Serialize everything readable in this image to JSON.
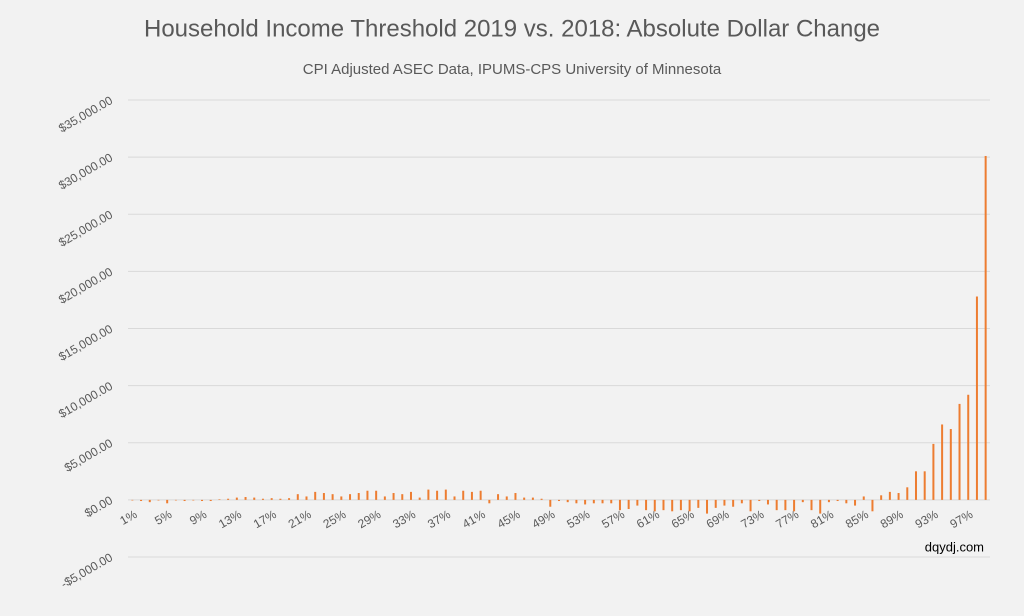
{
  "chart_data": {
    "type": "bar",
    "title": "Household Income Threshold 2019 vs. 2018: Absolute Dollar Change",
    "subtitle": "CPI Adjusted ASEC Data, IPUMS-CPS University of Minnesota",
    "annotation": "dqydj.com",
    "categories": [
      "1%",
      null,
      null,
      null,
      "5%",
      null,
      null,
      null,
      "9%",
      null,
      null,
      null,
      "13%",
      null,
      null,
      null,
      "17%",
      null,
      null,
      null,
      "21%",
      null,
      null,
      null,
      "25%",
      null,
      null,
      null,
      "29%",
      null,
      null,
      null,
      "33%",
      null,
      null,
      null,
      "37%",
      null,
      null,
      null,
      "41%",
      null,
      null,
      null,
      "45%",
      null,
      null,
      null,
      "49%",
      null,
      null,
      null,
      "53%",
      null,
      null,
      null,
      "57%",
      null,
      null,
      null,
      "61%",
      null,
      null,
      null,
      "65%",
      null,
      null,
      null,
      "69%",
      null,
      null,
      null,
      "73%",
      null,
      null,
      null,
      "77%",
      null,
      null,
      null,
      "81%",
      null,
      null,
      null,
      "85%",
      null,
      null,
      null,
      "89%",
      null,
      null,
      null,
      "93%",
      null,
      null,
      null,
      "97%",
      null,
      null
    ],
    "values": [
      -50,
      -100,
      -200,
      -50,
      -300,
      -50,
      -100,
      -50,
      -100,
      -100,
      50,
      100,
      200,
      250,
      200,
      100,
      150,
      100,
      150,
      500,
      300,
      700,
      600,
      500,
      300,
      500,
      600,
      800,
      800,
      300,
      600,
      500,
      700,
      200,
      900,
      800,
      900,
      300,
      800,
      700,
      800,
      -300,
      500,
      300,
      600,
      200,
      200,
      100,
      -600,
      -100,
      -200,
      -300,
      -400,
      -300,
      -300,
      -300,
      -900,
      -800,
      -500,
      -900,
      -1000,
      -900,
      -1000,
      -900,
      -1000,
      -700,
      -1200,
      -700,
      -500,
      -600,
      -300,
      -1000,
      -100,
      -400,
      -900,
      -900,
      -1000,
      -200,
      -900,
      -1200,
      -200,
      -100,
      -300,
      -500,
      300,
      -1000,
      400,
      700,
      600,
      1100,
      2500,
      2500,
      4900,
      6600,
      6200,
      8400,
      9200,
      17800,
      30100
    ],
    "color": "#ed7d31",
    "ylim": [
      -5000,
      35000
    ],
    "yticks": [
      {
        "value": -5000,
        "label": "-$5,000.00"
      },
      {
        "value": 0,
        "label": "$0.00"
      },
      {
        "value": 5000,
        "label": "$5,000.00"
      },
      {
        "value": 10000,
        "label": "$10,000.00"
      },
      {
        "value": 15000,
        "label": "$15,000.00"
      },
      {
        "value": 20000,
        "label": "$20,000.00"
      },
      {
        "value": 25000,
        "label": "$25,000.00"
      },
      {
        "value": 30000,
        "label": "$30,000.00"
      },
      {
        "value": 35000,
        "label": "$35,000.00"
      }
    ],
    "grid": true
  }
}
